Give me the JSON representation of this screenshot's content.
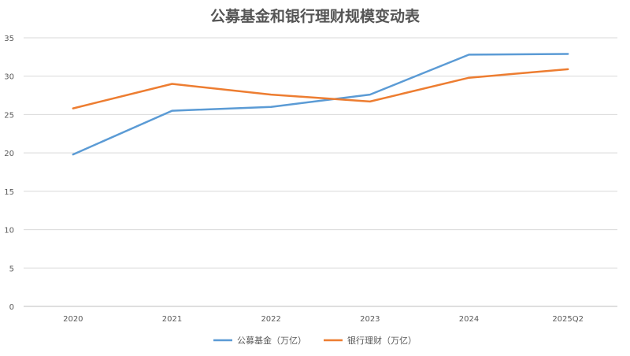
{
  "chart_data": {
    "type": "line",
    "title": "公募基金和银行理财规模变动表",
    "xlabel": "",
    "ylabel": "",
    "categories": [
      "2020",
      "2021",
      "2022",
      "2023",
      "2024",
      "2025Q2"
    ],
    "ylim": [
      0,
      35
    ],
    "yticks": [
      0,
      5,
      10,
      15,
      20,
      25,
      30,
      35
    ],
    "grid": true,
    "legend_position": "bottom",
    "series": [
      {
        "name": "公募基金（万亿）",
        "color": "#5B9BD5",
        "values": [
          19.8,
          25.5,
          26.0,
          27.6,
          32.8,
          32.9
        ]
      },
      {
        "name": "银行理财（万亿）",
        "color": "#ED7D31",
        "values": [
          25.8,
          29.0,
          27.6,
          26.7,
          29.8,
          30.9
        ]
      }
    ]
  }
}
